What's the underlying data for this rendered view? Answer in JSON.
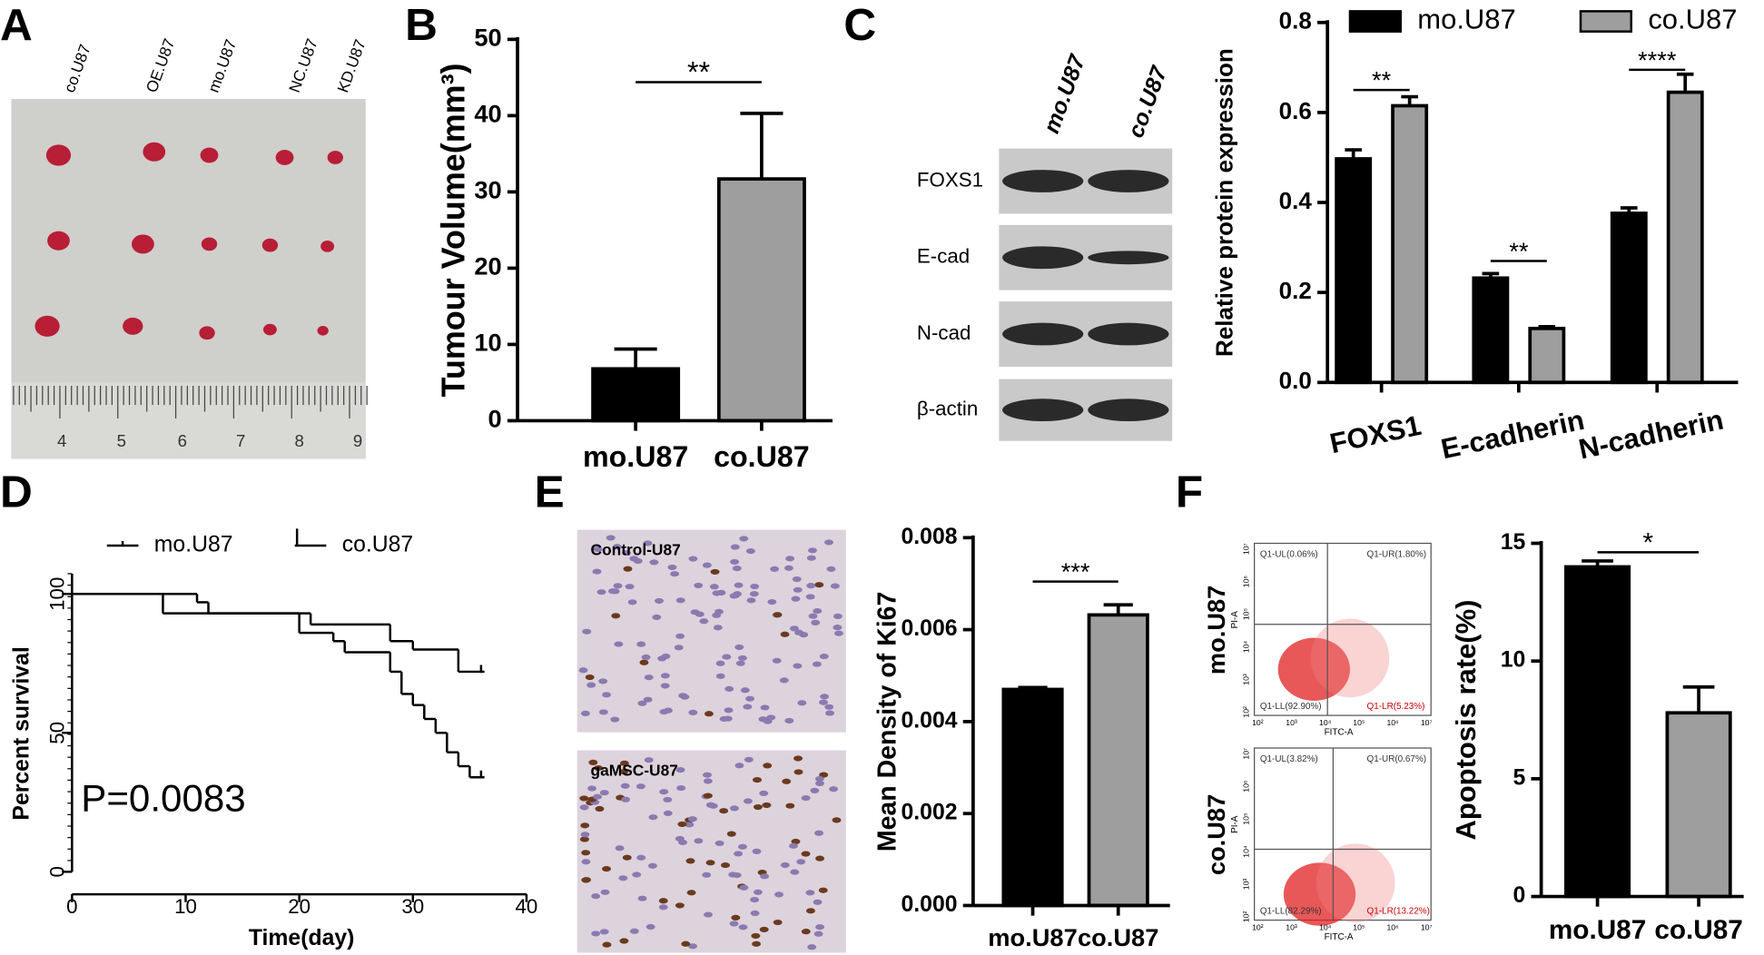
{
  "panel_labels": [
    "A",
    "B",
    "C",
    "D",
    "E",
    "F"
  ],
  "photo": {
    "sample_labels": [
      "co.U87",
      "OE.U87",
      "mo.U87",
      "NC.U87",
      "KD.U87"
    ],
    "ruler_numbers": [
      "4",
      "5",
      "6",
      "7",
      "8",
      "9"
    ]
  },
  "western_blot": {
    "lanes": [
      "mo.U87",
      "co.U87"
    ],
    "proteins": [
      "FOXS1",
      "E-cad",
      "N-cad",
      "β-actin"
    ]
  },
  "ihc": {
    "labels": [
      "Control-U87",
      "gaMSC-U87"
    ]
  },
  "flow_cytometry": {
    "x_label": "FITC-A",
    "y_label": "PI-A",
    "ticks": [
      "10²",
      "10³",
      "10⁴",
      "10⁵",
      "10⁶",
      "10⁷"
    ],
    "plots": [
      {
        "name": "mo.U87",
        "quadrants": [
          "Q1-UL(0.06%)",
          "Q1-UR(1.80%)",
          "Q1-LL(92.90%)",
          "Q1-LR(5.23%)"
        ]
      },
      {
        "name": "co.U87",
        "quadrants": [
          "Q1-UL(3.82%)",
          "Q1-UR(0.67%)",
          "Q1-LL(82.29%)",
          "Q1-LR(13.22%)"
        ]
      }
    ]
  },
  "chart_data": [
    {
      "type": "bar",
      "y_label": "Tumour Volume(mm³)",
      "categories": [
        "mo.U87",
        "co.U87"
      ],
      "values": [
        6.8,
        31.7
      ],
      "errors": [
        2.6,
        8.6
      ],
      "colors": [
        "#000000",
        "#9e9e9e"
      ],
      "ylim": [
        0,
        50
      ],
      "yticks": [
        0,
        10,
        20,
        30,
        40,
        50
      ],
      "significance": "**"
    },
    {
      "type": "grouped_bar",
      "y_label": "Relative protein expression",
      "categories": [
        "FOXS1",
        "E-cadherin",
        "N-cadherin"
      ],
      "series": [
        {
          "name": "mo.U87",
          "color": "#000000",
          "values": [
            0.497,
            0.232,
            0.376
          ],
          "errors": [
            0.02,
            0.01,
            0.012
          ]
        },
        {
          "name": "co.U87",
          "color": "#9e9e9e",
          "values": [
            0.615,
            0.12,
            0.645
          ],
          "errors": [
            0.02,
            0.004,
            0.04
          ]
        }
      ],
      "ylim": [
        0,
        0.8
      ],
      "yticks": [
        {
          "value": 0,
          "label": "0.0"
        },
        0.2,
        0.4,
        0.6,
        0.8
      ],
      "significance": [
        "**",
        "**",
        "****"
      ]
    },
    {
      "type": "line",
      "step": true,
      "x_label": "Time(day)",
      "y_label": "Percent survival",
      "annotation": "P=0.0083",
      "series": [
        {
          "name": "mo.U87",
          "color": "#000000",
          "x": [
            0,
            11,
            12,
            21,
            28,
            30,
            34,
            36
          ],
          "values": [
            100,
            97,
            93,
            89,
            83,
            80,
            72,
            72
          ]
        },
        {
          "name": "co.U87",
          "color": "#000000",
          "x": [
            0,
            8,
            20,
            23,
            24,
            28,
            29,
            30,
            31,
            32,
            33,
            34,
            35,
            36
          ],
          "values": [
            100,
            93,
            86,
            83,
            79,
            72,
            64,
            60,
            55,
            50,
            43,
            38,
            34,
            34
          ]
        }
      ],
      "xlim": [
        0,
        40
      ],
      "xticks": [
        0,
        10,
        20,
        30,
        40
      ],
      "ylim": [
        0,
        100
      ],
      "yticks": [
        0,
        50,
        100
      ]
    },
    {
      "type": "bar",
      "y_label": "Mean Density of Ki67",
      "categories": [
        "mo.U87",
        "co.U87"
      ],
      "values": [
        0.0047,
        0.00632
      ],
      "errors": [
        4e-05,
        0.00022
      ],
      "colors": [
        "#000000",
        "#9e9e9e"
      ],
      "ylim": [
        0,
        0.008
      ],
      "yticks": [
        {
          "value": 0,
          "label": "0.000"
        },
        {
          "value": 0.002,
          "label": "0.002"
        },
        {
          "value": 0.004,
          "label": "0.004"
        },
        {
          "value": 0.006,
          "label": "0.006"
        },
        {
          "value": 0.008,
          "label": "0.008"
        }
      ],
      "significance": "***"
    },
    {
      "type": "bar",
      "y_label": "Apoptosis rate(%)",
      "categories": [
        "mo.U87",
        "co.U87"
      ],
      "values": [
        14.0,
        7.8
      ],
      "errors": [
        0.25,
        1.1
      ],
      "colors": [
        "#000000",
        "#9e9e9e"
      ],
      "ylim": [
        0,
        15
      ],
      "yticks": [
        0,
        5,
        10,
        15
      ],
      "significance": "*"
    }
  ]
}
